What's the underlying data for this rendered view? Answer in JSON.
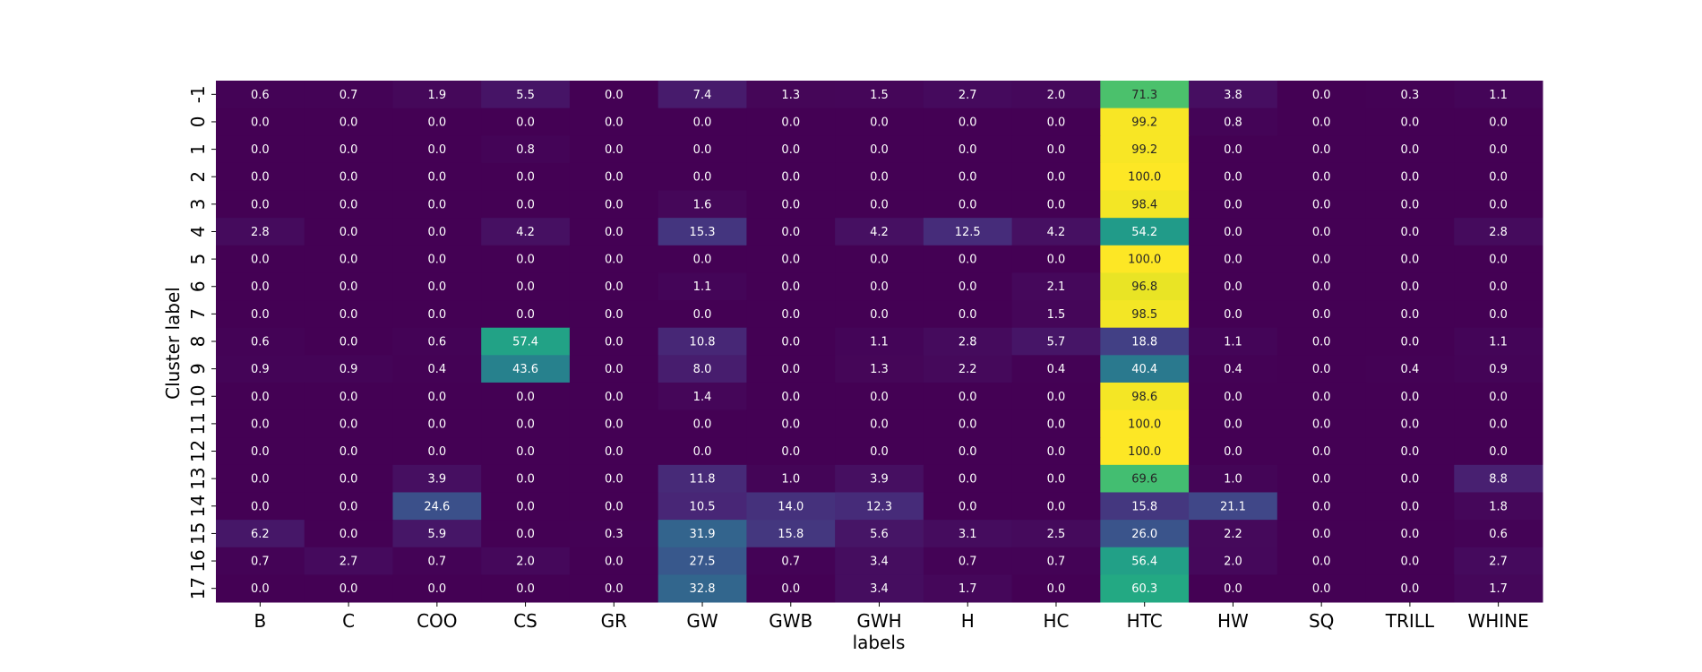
{
  "chart_data": {
    "type": "heatmap",
    "xlabel": "labels",
    "ylabel": "Cluster label",
    "columns": [
      "B",
      "C",
      "COO",
      "CS",
      "GR",
      "GW",
      "GWB",
      "GWH",
      "H",
      "HC",
      "HTC",
      "HW",
      "SQ",
      "TRILL",
      "WHINE"
    ],
    "rows": [
      "-1",
      "0",
      "1",
      "2",
      "3",
      "4",
      "5",
      "6",
      "7",
      "8",
      "9",
      "10",
      "11",
      "12",
      "13",
      "14",
      "15",
      "16",
      "17"
    ],
    "values": [
      [
        0.6,
        0.7,
        1.9,
        5.5,
        0.0,
        7.4,
        1.3,
        1.5,
        2.7,
        2.0,
        71.3,
        3.8,
        0.0,
        0.3,
        1.1
      ],
      [
        0.0,
        0.0,
        0.0,
        0.0,
        0.0,
        0.0,
        0.0,
        0.0,
        0.0,
        0.0,
        99.2,
        0.8,
        0.0,
        0.0,
        0.0
      ],
      [
        0.0,
        0.0,
        0.0,
        0.8,
        0.0,
        0.0,
        0.0,
        0.0,
        0.0,
        0.0,
        99.2,
        0.0,
        0.0,
        0.0,
        0.0
      ],
      [
        0.0,
        0.0,
        0.0,
        0.0,
        0.0,
        0.0,
        0.0,
        0.0,
        0.0,
        0.0,
        100.0,
        0.0,
        0.0,
        0.0,
        0.0
      ],
      [
        0.0,
        0.0,
        0.0,
        0.0,
        0.0,
        1.6,
        0.0,
        0.0,
        0.0,
        0.0,
        98.4,
        0.0,
        0.0,
        0.0,
        0.0
      ],
      [
        2.8,
        0.0,
        0.0,
        4.2,
        0.0,
        15.3,
        0.0,
        4.2,
        12.5,
        4.2,
        54.2,
        0.0,
        0.0,
        0.0,
        2.8
      ],
      [
        0.0,
        0.0,
        0.0,
        0.0,
        0.0,
        0.0,
        0.0,
        0.0,
        0.0,
        0.0,
        100.0,
        0.0,
        0.0,
        0.0,
        0.0
      ],
      [
        0.0,
        0.0,
        0.0,
        0.0,
        0.0,
        1.1,
        0.0,
        0.0,
        0.0,
        2.1,
        96.8,
        0.0,
        0.0,
        0.0,
        0.0
      ],
      [
        0.0,
        0.0,
        0.0,
        0.0,
        0.0,
        0.0,
        0.0,
        0.0,
        0.0,
        1.5,
        98.5,
        0.0,
        0.0,
        0.0,
        0.0
      ],
      [
        0.6,
        0.0,
        0.6,
        57.4,
        0.0,
        10.8,
        0.0,
        1.1,
        2.8,
        5.7,
        18.8,
        1.1,
        0.0,
        0.0,
        1.1
      ],
      [
        0.9,
        0.9,
        0.4,
        43.6,
        0.0,
        8.0,
        0.0,
        1.3,
        2.2,
        0.4,
        40.4,
        0.4,
        0.0,
        0.4,
        0.9
      ],
      [
        0.0,
        0.0,
        0.0,
        0.0,
        0.0,
        1.4,
        0.0,
        0.0,
        0.0,
        0.0,
        98.6,
        0.0,
        0.0,
        0.0,
        0.0
      ],
      [
        0.0,
        0.0,
        0.0,
        0.0,
        0.0,
        0.0,
        0.0,
        0.0,
        0.0,
        0.0,
        100.0,
        0.0,
        0.0,
        0.0,
        0.0
      ],
      [
        0.0,
        0.0,
        0.0,
        0.0,
        0.0,
        0.0,
        0.0,
        0.0,
        0.0,
        0.0,
        100.0,
        0.0,
        0.0,
        0.0,
        0.0
      ],
      [
        0.0,
        0.0,
        3.9,
        0.0,
        0.0,
        11.8,
        1.0,
        3.9,
        0.0,
        0.0,
        69.6,
        1.0,
        0.0,
        0.0,
        8.8
      ],
      [
        0.0,
        0.0,
        24.6,
        0.0,
        0.0,
        10.5,
        14.0,
        12.3,
        0.0,
        0.0,
        15.8,
        21.1,
        0.0,
        0.0,
        1.8
      ],
      [
        6.2,
        0.0,
        5.9,
        0.0,
        0.3,
        31.9,
        15.8,
        5.6,
        3.1,
        2.5,
        26.0,
        2.2,
        0.0,
        0.0,
        0.6
      ],
      [
        0.7,
        2.7,
        0.7,
        2.0,
        0.0,
        27.5,
        0.7,
        3.4,
        0.7,
        0.7,
        56.4,
        2.0,
        0.0,
        0.0,
        2.7
      ],
      [
        0.0,
        0.0,
        0.0,
        0.0,
        0.0,
        32.8,
        0.0,
        3.4,
        1.7,
        0.0,
        60.3,
        0.0,
        0.0,
        0.0,
        1.7
      ]
    ],
    "value_format": "0.0",
    "vmin": 0,
    "vmax": 100,
    "colormap": "viridis",
    "colorbar": false,
    "grid": false
  }
}
